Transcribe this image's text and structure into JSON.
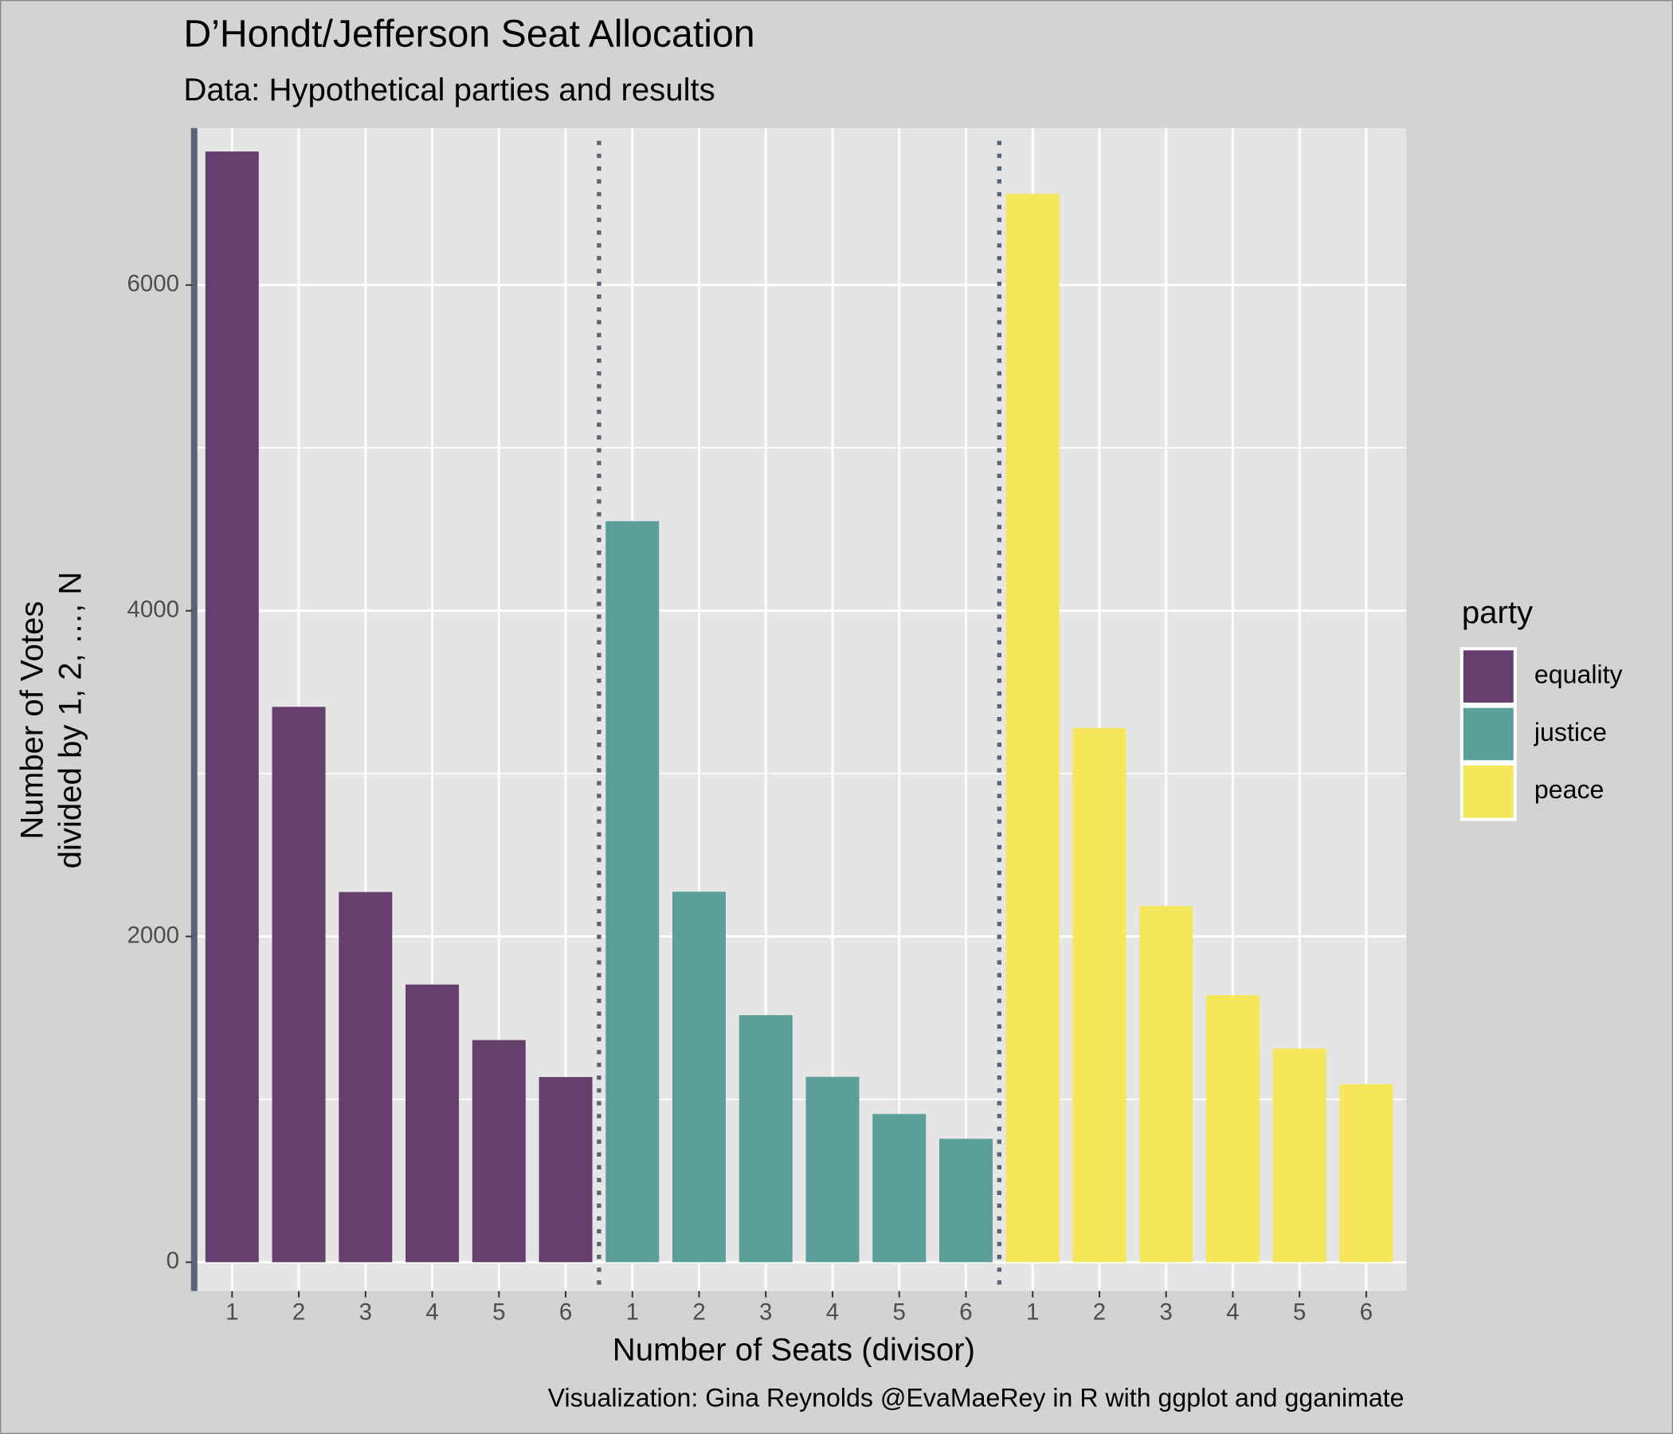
{
  "chart_data": {
    "type": "bar",
    "title": "D’Hondt/Jefferson Seat Allocation",
    "subtitle": "Data: Hypothetical parties and results",
    "x_label": "Number of Seats (divisor)",
    "y_label": [
      "Number of Votes",
      "divided by 1, 2, …, N"
    ],
    "caption": "Visualization: Gina Reynolds @EvaMaeRey in R with ggplot and gganimate",
    "legend_title": "party",
    "legend_position": "right",
    "categories": [
      "1",
      "2",
      "3",
      "4",
      "5",
      "6"
    ],
    "series": [
      {
        "name": "equality",
        "color": "#673f6f",
        "values": [
          6820,
          3410,
          2273,
          1705,
          1364,
          1137
        ]
      },
      {
        "name": "justice",
        "color": "#5a9f9a",
        "values": [
          4550,
          2275,
          1517,
          1138,
          910,
          758
        ]
      },
      {
        "name": "peace",
        "color": "#f6e65a",
        "values": [
          6560,
          3280,
          2187,
          1640,
          1312,
          1093
        ]
      }
    ],
    "ylim": [
      -177,
      6964
    ],
    "yticks": [
      0,
      2000,
      4000,
      6000
    ],
    "grid": true
  }
}
